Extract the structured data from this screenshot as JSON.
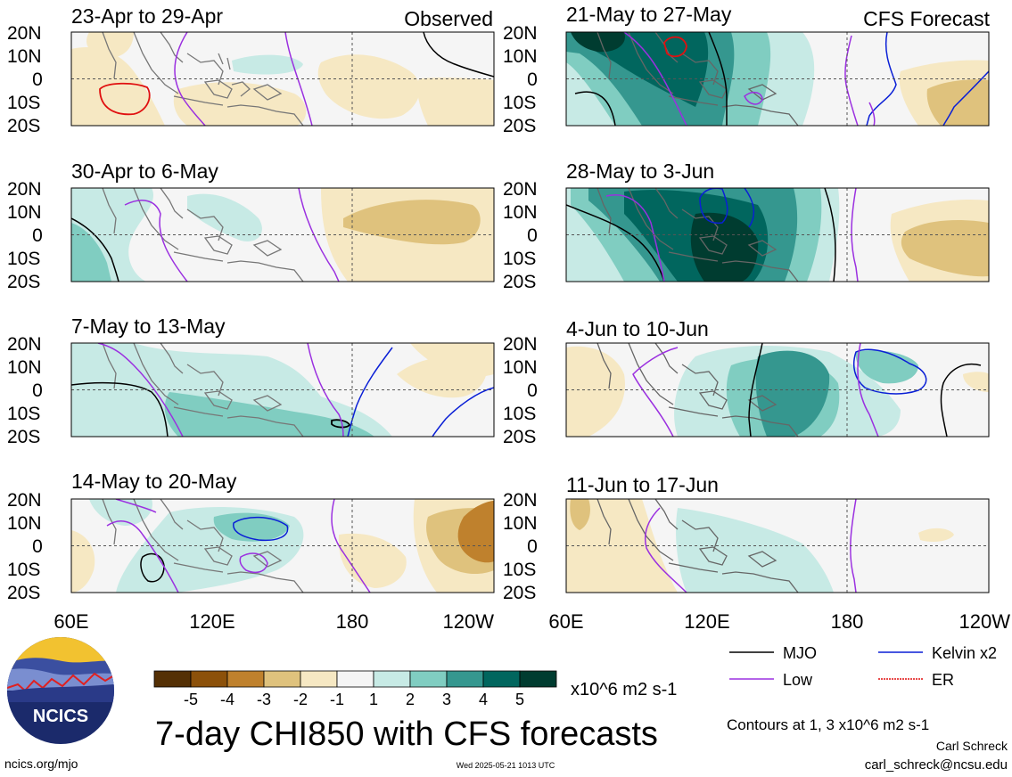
{
  "figure": {
    "title": "7-day CHI850 with CFS forecasts",
    "site": "ncics.org/mjo",
    "timestamp": "Wed 2025-05-21 1013 UTC",
    "author": "Carl Schreck",
    "email": "carl_schreck@ncsu.edu",
    "logo_text": "NCICS"
  },
  "columns": {
    "observed_label": "Observed",
    "forecast_label": "CFS Forecast"
  },
  "axes": {
    "lat_labels": [
      "20N",
      "10N",
      "0",
      "10S",
      "20S"
    ],
    "lon_labels": [
      "60E",
      "120E",
      "180",
      "120W"
    ]
  },
  "panels": [
    {
      "title": "23-Apr to 29-Apr",
      "column": "observed"
    },
    {
      "title": "30-Apr to 6-May",
      "column": "observed"
    },
    {
      "title": "7-May to 13-May",
      "column": "observed"
    },
    {
      "title": "14-May to 20-May",
      "column": "observed"
    },
    {
      "title": "21-May to 27-May",
      "column": "forecast"
    },
    {
      "title": "28-May to 3-Jun",
      "column": "forecast"
    },
    {
      "title": "4-Jun to 10-Jun",
      "column": "forecast"
    },
    {
      "title": "11-Jun to 17-Jun",
      "column": "forecast"
    }
  ],
  "colorbar": {
    "labels": [
      "-5",
      "-4",
      "-3",
      "-2",
      "-1",
      "1",
      "2",
      "3",
      "4",
      "5"
    ],
    "colors": [
      "#543005",
      "#8c510a",
      "#bf812d",
      "#dfc27d",
      "#f6e8c3",
      "#f5f5f5",
      "#c7eae5",
      "#80cdc1",
      "#35978f",
      "#01665e",
      "#003c30"
    ],
    "units": "x10^6 m2 s-1"
  },
  "legend": {
    "items": [
      {
        "label": "MJO",
        "color": "#000000"
      },
      {
        "label": "Kelvin x2",
        "color": "#0a1fd6"
      },
      {
        "label": "Low",
        "color": "#9b30e0"
      },
      {
        "label": "ER",
        "color": "#e01010"
      }
    ],
    "contour_note": "Contours at 1, 3 x10^6 m2 s-1"
  }
}
